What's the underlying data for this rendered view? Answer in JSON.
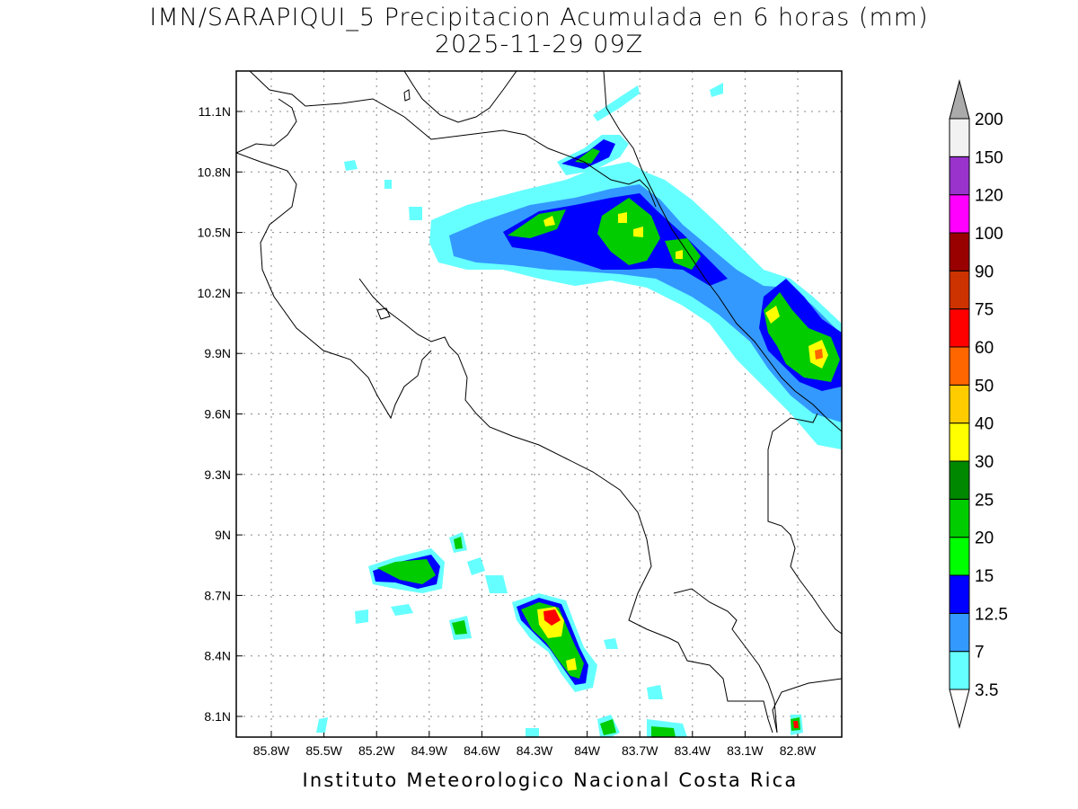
{
  "title": {
    "line1": "IMN/SARAPIQUI_5 Precipitacion Acumulada en 6 horas (mm)",
    "line2": "2025-11-29 09Z"
  },
  "footer": "Instituto Meteorologico Nacional Costa Rica",
  "map": {
    "lat_ticks": [
      "11.1N",
      "10.8N",
      "10.5N",
      "10.2N",
      "9.9N",
      "9.6N",
      "9.3N",
      "9N",
      "8.7N",
      "8.4N",
      "8.1N"
    ],
    "lon_ticks": [
      "85.8W",
      "85.5W",
      "85.2W",
      "84.9W",
      "84.6W",
      "84.3W",
      "84W",
      "83.7W",
      "83.4W",
      "83.1W",
      "82.8W"
    ],
    "grid": "dotted"
  },
  "legend": {
    "levels": [
      {
        "label": "3.5",
        "color": "#66ffff"
      },
      {
        "label": "7",
        "color": "#3399ff"
      },
      {
        "label": "12.5",
        "color": "#0000ff"
      },
      {
        "label": "15",
        "color": "#00ff00"
      },
      {
        "label": "20",
        "color": "#00cc00"
      },
      {
        "label": "25",
        "color": "#008800"
      },
      {
        "label": "30",
        "color": "#ffff00"
      },
      {
        "label": "40",
        "color": "#ffcc00"
      },
      {
        "label": "50",
        "color": "#ff6600"
      },
      {
        "label": "60",
        "color": "#ff0000"
      },
      {
        "label": "75",
        "color": "#cc3300"
      },
      {
        "label": "90",
        "color": "#990000"
      },
      {
        "label": "100",
        "color": "#ff00ff"
      },
      {
        "label": "120",
        "color": "#9933cc"
      },
      {
        "label": "150",
        "color": "#f2f2f2"
      },
      {
        "label": "200",
        "color": "#aaaaaa"
      }
    ]
  }
}
